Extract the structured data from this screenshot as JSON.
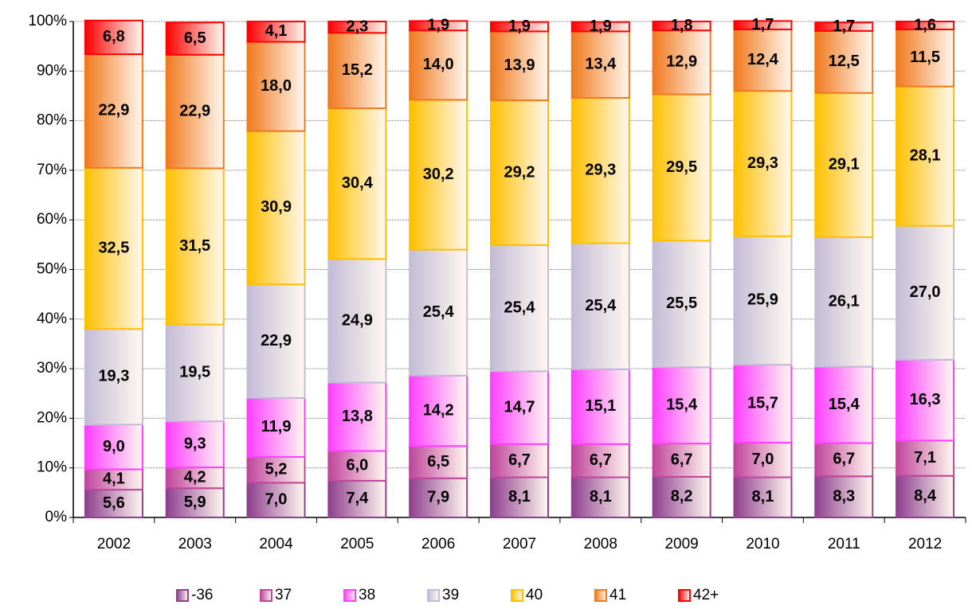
{
  "chart_data": {
    "type": "stacked-bar",
    "categories": [
      "2002",
      "2003",
      "2004",
      "2005",
      "2006",
      "2007",
      "2008",
      "2009",
      "2010",
      "2011",
      "2012"
    ],
    "series": [
      {
        "name": "-36",
        "color": "#8e3f8e",
        "values": [
          5.6,
          5.9,
          7.0,
          7.4,
          7.9,
          8.1,
          8.1,
          8.2,
          8.1,
          8.3,
          8.4
        ],
        "value_labels": [
          "5,6",
          "5,9",
          "7,0",
          "7,4",
          "7,9",
          "8,1",
          "8,1",
          "8,2",
          "8,1",
          "8,3",
          "8,4"
        ]
      },
      {
        "name": "37",
        "color": "#c0459c",
        "values": [
          4.1,
          4.2,
          5.2,
          6.0,
          6.5,
          6.7,
          6.7,
          6.7,
          7.0,
          6.7,
          7.1
        ],
        "value_labels": [
          "4,1",
          "4,2",
          "5,2",
          "6,0",
          "6,5",
          "6,7",
          "6,7",
          "6,7",
          "7,0",
          "6,7",
          "7,1"
        ]
      },
      {
        "name": "38",
        "color": "#ff40ff",
        "values": [
          9.0,
          9.3,
          11.9,
          13.8,
          14.2,
          14.7,
          15.1,
          15.4,
          15.7,
          15.4,
          16.3
        ],
        "value_labels": [
          "9,0",
          "9,3",
          "11,9",
          "13,8",
          "14,2",
          "14,7",
          "15,1",
          "15,4",
          "15,7",
          "15,4",
          "16,3"
        ]
      },
      {
        "name": "39",
        "color": "#c4bcd6",
        "values": [
          19.3,
          19.5,
          22.9,
          24.9,
          25.4,
          25.4,
          25.4,
          25.5,
          25.9,
          26.1,
          27.0
        ],
        "value_labels": [
          "19,3",
          "19,5",
          "22,9",
          "24,9",
          "25,4",
          "25,4",
          "25,4",
          "25,5",
          "25,9",
          "26,1",
          "27,0"
        ]
      },
      {
        "name": "40",
        "color": "#ffc000",
        "values": [
          32.5,
          31.5,
          30.9,
          30.4,
          30.2,
          29.2,
          29.3,
          29.5,
          29.3,
          29.1,
          28.1
        ],
        "value_labels": [
          "32,5",
          "31,5",
          "30,9",
          "30,4",
          "30,2",
          "29,2",
          "29,3",
          "29,5",
          "29,3",
          "29,1",
          "28,1"
        ]
      },
      {
        "name": "41",
        "color": "#f07a1e",
        "values": [
          22.9,
          22.9,
          18.0,
          15.2,
          14.0,
          13.9,
          13.4,
          12.9,
          12.4,
          12.5,
          11.5
        ],
        "value_labels": [
          "22,9",
          "22,9",
          "18,0",
          "15,2",
          "14,0",
          "13,9",
          "13,4",
          "12,9",
          "12,4",
          "12,5",
          "11,5"
        ]
      },
      {
        "name": "42+",
        "color": "#ff0000",
        "values": [
          6.8,
          6.5,
          4.1,
          2.3,
          1.9,
          1.9,
          1.9,
          1.8,
          1.7,
          1.7,
          1.6
        ],
        "value_labels": [
          "6,8",
          "6,5",
          "4,1",
          "2,3",
          "1,9",
          "1,9",
          "1,9",
          "1,8",
          "1,7",
          "1,7",
          "1,6"
        ]
      }
    ],
    "ylim": [
      0,
      100
    ],
    "yticks": [
      {
        "value": 0,
        "label": "0%"
      },
      {
        "value": 10,
        "label": "10%"
      },
      {
        "value": 20,
        "label": "20%"
      },
      {
        "value": 30,
        "label": "30%"
      },
      {
        "value": 40,
        "label": "40%"
      },
      {
        "value": 50,
        "label": "50%"
      },
      {
        "value": 60,
        "label": "60%"
      },
      {
        "value": 70,
        "label": "70%"
      },
      {
        "value": 80,
        "label": "80%"
      },
      {
        "value": 90,
        "label": "90%"
      },
      {
        "value": 100,
        "label": "100%"
      }
    ],
    "grid": true,
    "legend": "bottom"
  }
}
